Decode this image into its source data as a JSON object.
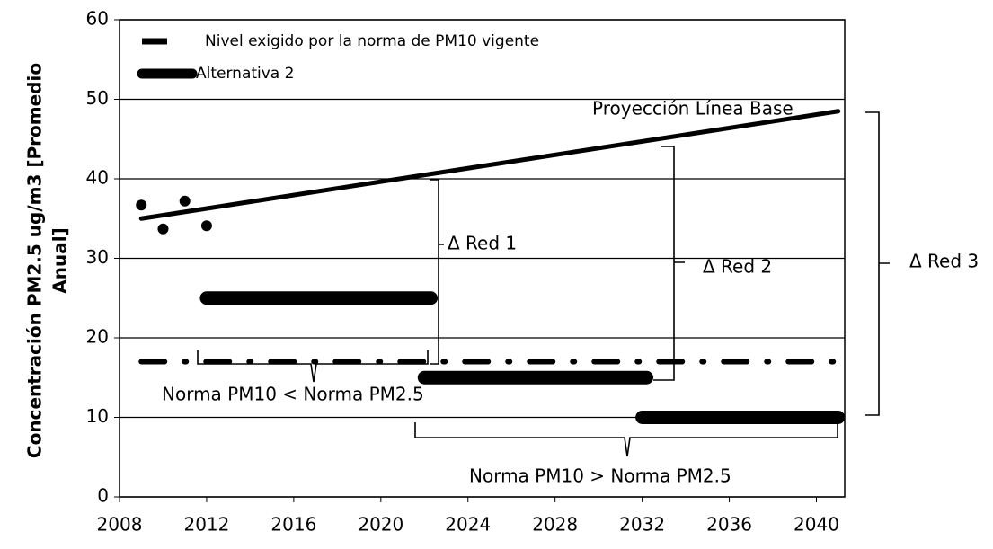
{
  "chart_data": {
    "type": "line",
    "ylabel": [
      "Concentración PM2.5 ug/m3 [Promedio",
      "Anual]"
    ],
    "xlim": [
      2008,
      2041.3
    ],
    "xticks": [
      2008,
      2012,
      2016,
      2020,
      2024,
      2028,
      2032,
      2036,
      2040
    ],
    "ylim": [
      0,
      60
    ],
    "yticks": [
      0,
      10,
      20,
      30,
      40,
      50,
      60
    ],
    "grid": true,
    "series": [
      {
        "name": "Nivel exigido por la norma de PM10 vigente",
        "color": "#000000",
        "style": "dashdot",
        "x": [
          2009,
          2041
        ],
        "values": [
          17,
          17
        ]
      },
      {
        "name": "Alternativa 2",
        "color": "#000000",
        "style": "thick",
        "x": [
          2012,
          2022.3,
          null,
          2022,
          2032.2,
          null,
          2032,
          2041
        ],
        "values": [
          25,
          25,
          null,
          15,
          15,
          null,
          10,
          10
        ]
      }
    ],
    "trend": {
      "label": "Proyección Línea Base",
      "color": "#000000",
      "x": [
        2009,
        2041
      ],
      "values": [
        35,
        48.5
      ]
    },
    "points": {
      "color": "#000000",
      "x": [
        2009,
        2010,
        2011,
        2012
      ],
      "values": [
        36.7,
        33.7,
        37.2,
        34.1
      ]
    },
    "annotations": [
      "Δ Red 1",
      "Δ Red 2",
      "Δ Red 3",
      "Norma PM10 < Norma PM2.5",
      "Norma PM10 > Norma PM2.5"
    ]
  }
}
